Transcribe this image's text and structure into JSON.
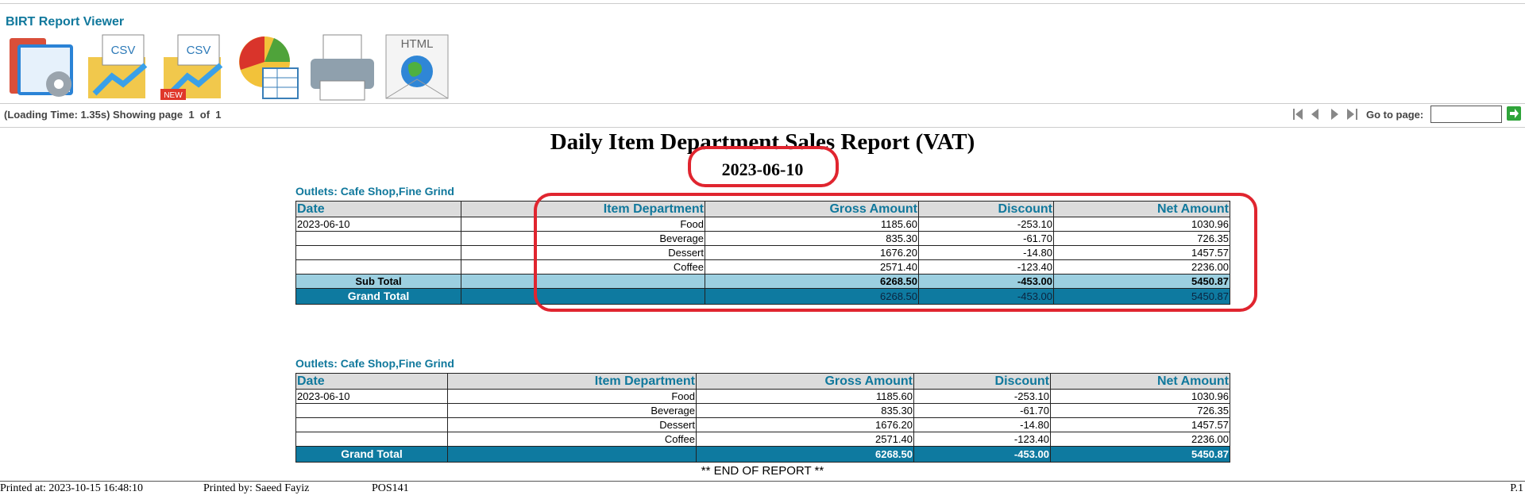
{
  "viewer": {
    "title": "BIRT Report Viewer",
    "icon_labels": [
      "CSV",
      "CSV",
      "NEW",
      "HTML"
    ],
    "status": "(Loading Time: 1.35s) Showing page  1  of  1",
    "goto_label": "Go to page:"
  },
  "report": {
    "title": "Daily Item Department Sales Report (VAT)",
    "date": "2023-06-10",
    "tables": [
      {
        "outlets": "Outlets: Cafe Shop,Fine Grind",
        "columns": [
          "Date",
          "Item Department",
          "Gross Amount",
          "Discount",
          "Net Amount"
        ],
        "date_groups": [
          {
            "date": "2023-06-10",
            "items": [
              [
                "Food",
                "1185.60",
                "-253.10",
                "1030.96"
              ],
              [
                "Beverage",
                "835.30",
                "-61.70",
                "726.35"
              ],
              [
                "Dessert",
                "1676.20",
                "-14.80",
                "1457.57"
              ],
              [
                "Coffee",
                "2571.40",
                "-123.40",
                "2236.00"
              ]
            ]
          }
        ],
        "subtotal": {
          "label": "Sub Total",
          "values": [
            "6268.50",
            "-453.00",
            "5450.87"
          ]
        },
        "grand_total": {
          "label": "Grand Total",
          "values": [
            "6268.50",
            "-453.00",
            "5450.87"
          ]
        }
      },
      {
        "outlets": "Outlets: Cafe Shop,Fine Grind",
        "columns": [
          "Date",
          "Item Department",
          "Gross Amount",
          "Discount",
          "Net Amount"
        ],
        "date_groups": [
          {
            "date": "2023-06-10",
            "items": [
              [
                "Food",
                "1185.60",
                "-253.10",
                "1030.96"
              ],
              [
                "Beverage",
                "835.30",
                "-61.70",
                "726.35"
              ],
              [
                "Dessert",
                "1676.20",
                "-14.80",
                "1457.57"
              ],
              [
                "Coffee",
                "2571.40",
                "-123.40",
                "2236.00"
              ]
            ]
          }
        ],
        "grand_total": {
          "label": "Grand Total",
          "values": [
            "6268.50",
            "-453.00",
            "5450.87"
          ]
        }
      }
    ],
    "end": "** END OF REPORT **"
  },
  "footer": {
    "printed_at": "Printed at: 2023-10-15 16:48:10",
    "printed_by": "Printed by: Saeed Fayiz",
    "terminal": "POS141",
    "page": "P.1"
  }
}
